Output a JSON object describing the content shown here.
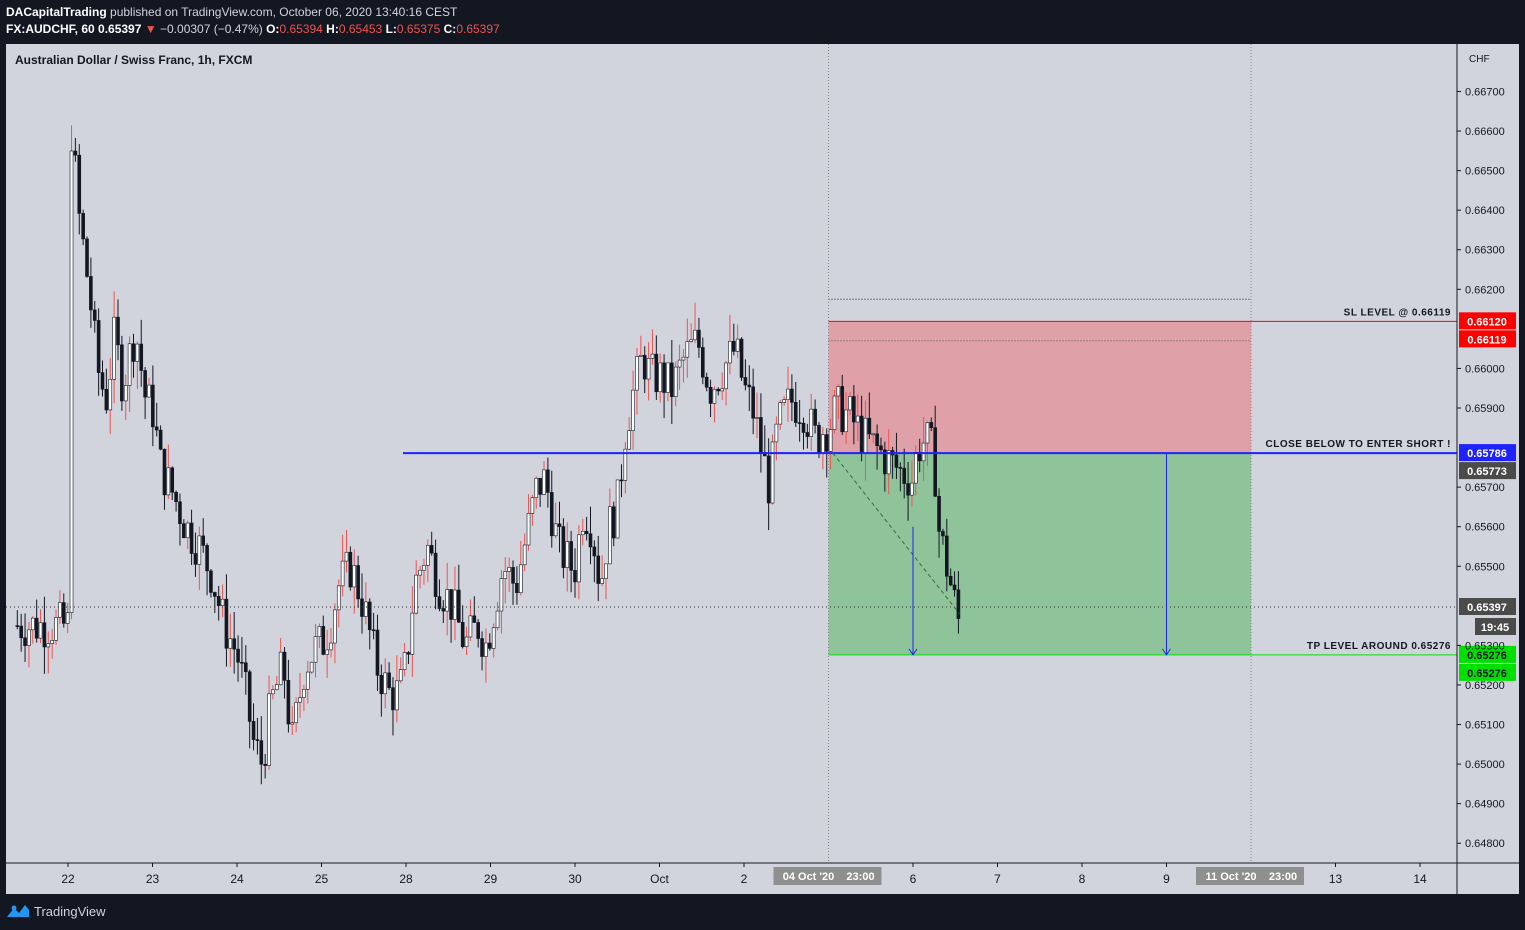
{
  "header": {
    "publisher": "DACapitalTrading",
    "published_text": "published on TradingView.com, October 06, 2020 13:40:16 CEST",
    "symbol": "FX:AUDCHF, 60",
    "last": "0.65397",
    "change_arrow": "▼",
    "change": "−0.00307 (−0.47%)",
    "o_label": "O:",
    "o": "0.65394",
    "h_label": "H:",
    "h": "0.65453",
    "l_label": "L:",
    "l": "0.65375",
    "c_label": "C:",
    "c": "0.65397"
  },
  "footer": {
    "brand": "TradingView",
    "logo_icon": "tradingview-logo-icon"
  },
  "colors": {
    "background": "#d1d4dc",
    "up": "#ffffff",
    "down": "#131722",
    "wick_up": "#ef5350",
    "sl": "#ff0000",
    "tp": "#00e000",
    "entry": "#1e22ff",
    "stop_zone": "#e0a0a8",
    "target_zone": "#8fc49a"
  },
  "chart_data": {
    "type": "candlestick",
    "title": "Australian Dollar / Swiss Franc, 1h, FXCM",
    "currency_label": "CHF",
    "ylim": [
      0.6475,
      0.6682
    ],
    "y_ticks": [
      "0.64800",
      "0.64900",
      "0.65000",
      "0.65100",
      "0.65200",
      "0.65300",
      "0.65500",
      "0.65600",
      "0.65700",
      "0.65900",
      "0.66000",
      "0.66200",
      "0.66300",
      "0.66400",
      "0.66500",
      "0.66600",
      "0.66700"
    ],
    "x_ticks": [
      {
        "label": "22",
        "day": 0
      },
      {
        "label": "23",
        "day": 1
      },
      {
        "label": "24",
        "day": 2
      },
      {
        "label": "25",
        "day": 3
      },
      {
        "label": "28",
        "day": 4
      },
      {
        "label": "29",
        "day": 5
      },
      {
        "label": "30",
        "day": 6
      },
      {
        "label": "Oct",
        "day": 7
      },
      {
        "label": "2",
        "day": 8
      },
      {
        "label": "6",
        "day": 10
      },
      {
        "label": "7",
        "day": 11
      },
      {
        "label": "8",
        "day": 12
      },
      {
        "label": "9",
        "day": 13
      },
      {
        "label": "13",
        "day": 15
      },
      {
        "label": "14",
        "day": 16
      }
    ],
    "x_time_labels": [
      {
        "label": "04 Oct '20",
        "time": "23:00",
        "day": 9
      },
      {
        "label": "11 Oct '20",
        "time": "23:00",
        "day": 14
      }
    ],
    "path_points": [
      [
        0.0,
        0.666
      ],
      [
        0.05,
        0.666
      ],
      [
        0.12,
        0.664
      ],
      [
        0.25,
        0.662
      ],
      [
        0.35,
        0.66
      ],
      [
        0.45,
        0.6592
      ],
      [
        0.55,
        0.6608
      ],
      [
        0.65,
        0.6596
      ],
      [
        0.8,
        0.661
      ],
      [
        0.92,
        0.6592
      ],
      [
        1.0,
        0.659
      ],
      [
        1.1,
        0.6575
      ],
      [
        1.25,
        0.6568
      ],
      [
        1.4,
        0.656
      ],
      [
        1.55,
        0.6555
      ],
      [
        1.7,
        0.6548
      ],
      [
        1.85,
        0.6535
      ],
      [
        2.0,
        0.6528
      ],
      [
        2.1,
        0.6518
      ],
      [
        2.2,
        0.6505
      ],
      [
        2.3,
        0.65
      ],
      [
        2.4,
        0.6515
      ],
      [
        2.55,
        0.6525
      ],
      [
        2.65,
        0.6505
      ],
      [
        2.8,
        0.6525
      ],
      [
        2.95,
        0.653
      ],
      [
        3.0,
        0.653
      ],
      [
        3.1,
        0.6535
      ],
      [
        3.2,
        0.6545
      ],
      [
        3.35,
        0.655
      ],
      [
        3.5,
        0.654
      ],
      [
        3.65,
        0.6525
      ],
      [
        3.8,
        0.6518
      ],
      [
        3.92,
        0.6518
      ],
      [
        4.0,
        0.6525
      ],
      [
        4.1,
        0.6545
      ],
      [
        4.25,
        0.6555
      ],
      [
        4.4,
        0.6545
      ],
      [
        4.55,
        0.654
      ],
      [
        4.7,
        0.653
      ],
      [
        4.85,
        0.6535
      ],
      [
        4.95,
        0.653
      ],
      [
        5.0,
        0.6535
      ],
      [
        5.15,
        0.655
      ],
      [
        5.3,
        0.6545
      ],
      [
        5.45,
        0.656
      ],
      [
        5.55,
        0.657
      ],
      [
        5.65,
        0.6572
      ],
      [
        5.8,
        0.6555
      ],
      [
        5.95,
        0.655
      ],
      [
        6.0,
        0.655
      ],
      [
        6.1,
        0.6565
      ],
      [
        6.2,
        0.656
      ],
      [
        6.3,
        0.6545
      ],
      [
        6.4,
        0.656
      ],
      [
        6.5,
        0.6565
      ],
      [
        6.6,
        0.6585
      ],
      [
        6.7,
        0.6595
      ],
      [
        6.8,
        0.6603
      ],
      [
        6.9,
        0.6598
      ],
      [
        7.0,
        0.6598
      ],
      [
        7.15,
        0.6595
      ],
      [
        7.3,
        0.6603
      ],
      [
        7.45,
        0.6607
      ],
      [
        7.6,
        0.6595
      ],
      [
        7.75,
        0.66
      ],
      [
        7.9,
        0.6605
      ],
      [
        8.0,
        0.6595
      ],
      [
        8.1,
        0.659
      ],
      [
        8.2,
        0.658
      ],
      [
        8.3,
        0.657
      ],
      [
        8.4,
        0.6585
      ],
      [
        8.55,
        0.6592
      ],
      [
        8.7,
        0.659
      ],
      [
        8.85,
        0.6582
      ],
      [
        8.95,
        0.6585
      ],
      [
        9.0,
        0.6585
      ],
      [
        9.1,
        0.659
      ],
      [
        9.25,
        0.6588
      ],
      [
        9.4,
        0.6583
      ],
      [
        9.55,
        0.658
      ],
      [
        9.7,
        0.6577
      ],
      [
        9.85,
        0.6574
      ],
      [
        10.0,
        0.6572
      ],
      [
        10.05,
        0.658
      ],
      [
        10.15,
        0.6582
      ],
      [
        10.25,
        0.6578
      ],
      [
        10.3,
        0.656
      ],
      [
        10.4,
        0.655
      ],
      [
        10.5,
        0.654
      ],
      [
        10.55,
        0.6535
      ]
    ],
    "annotations": [
      {
        "text": "SL LEVEL @ 0.66119",
        "price": 0.66119,
        "color": "#ff0000",
        "badges": [
          "0.66120",
          "0.66119"
        ]
      },
      {
        "text": "CLOSE BELOW TO ENTER SHORT !",
        "price": 0.65786,
        "color": "#1e22ff",
        "badges": [
          "0.65786",
          "0.65773"
        ]
      },
      {
        "text": "TP LEVEL AROUND 0.65276",
        "price": 0.65276,
        "color": "#00e000",
        "badges": [
          "0.65276",
          "0.65276"
        ]
      }
    ],
    "last_price": "0.65397",
    "countdown": "19:45",
    "position": {
      "entry": 0.65786,
      "stop": 0.66119,
      "target": 0.65276,
      "start_day": 9.0,
      "end_day": 14.0,
      "dotted_top": 0.66175
    }
  }
}
